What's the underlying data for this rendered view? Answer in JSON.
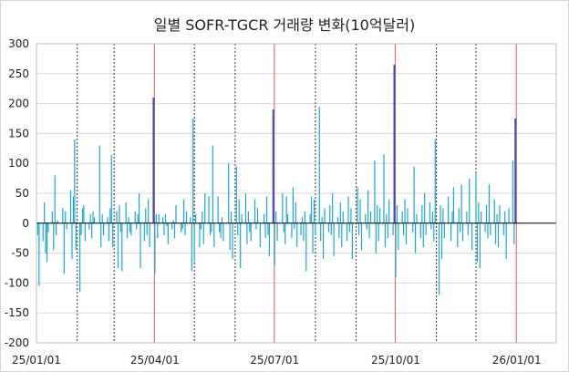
{
  "chart_data": {
    "type": "bar",
    "title": "일별 SOFR-TGCR 거래량 변화(10억달러)",
    "xlabel": "",
    "ylabel": "",
    "ylim": [
      -200,
      300
    ],
    "yticks": [
      300,
      250,
      200,
      150,
      100,
      50,
      0,
      -50,
      -100,
      -150,
      -200
    ],
    "xlim": [
      "2025-01-01",
      "2026-01-31"
    ],
    "xtick_labels": [
      "25/01/01",
      "25/04/01",
      "25/07/01",
      "25/10/01",
      "26/01/01"
    ],
    "xtick_dates": [
      "2025-01-01",
      "2025-04-01",
      "2025-07-01",
      "2025-10-01",
      "2026-01-01"
    ],
    "month_gridlines": [
      "2025-02-01",
      "2025-03-01",
      "2025-05-01",
      "2025-06-01",
      "2025-08-01",
      "2025-09-01",
      "2025-11-01",
      "2025-12-01"
    ],
    "quarter_end_lines": [
      "2025-03-31",
      "2025-06-30",
      "2025-09-30",
      "2025-12-31"
    ],
    "grid": "horizontal",
    "legend": "none",
    "colors": {
      "daily": "#1aa7d6",
      "quarter_end": "#3a4bc0",
      "month_line": "#000000",
      "quarter_line": "#e87070",
      "grid": "#d9d9d9"
    },
    "series": [
      {
        "values": [
          [
            "2025-01-02",
            -20
          ],
          [
            "2025-01-03",
            -105
          ],
          [
            "2025-01-06",
            -30
          ],
          [
            "2025-01-07",
            35
          ],
          [
            "2025-01-08",
            -50
          ],
          [
            "2025-01-09",
            -65
          ],
          [
            "2025-01-10",
            -15
          ],
          [
            "2025-01-13",
            20
          ],
          [
            "2025-01-14",
            -45
          ],
          [
            "2025-01-15",
            80
          ],
          [
            "2025-01-16",
            -20
          ],
          [
            "2025-01-17",
            5
          ],
          [
            "2025-01-21",
            25
          ],
          [
            "2025-01-22",
            -85
          ],
          [
            "2025-01-23",
            20
          ],
          [
            "2025-01-24",
            -10
          ],
          [
            "2025-01-27",
            55
          ],
          [
            "2025-01-28",
            -60
          ],
          [
            "2025-01-29",
            45
          ],
          [
            "2025-01-30",
            140
          ],
          [
            "2025-01-31",
            -45
          ],
          [
            "2025-02-03",
            -115
          ],
          [
            "2025-02-04",
            -20
          ],
          [
            "2025-02-05",
            25
          ],
          [
            "2025-02-06",
            30
          ],
          [
            "2025-02-07",
            -30
          ],
          [
            "2025-02-10",
            -10
          ],
          [
            "2025-02-11",
            15
          ],
          [
            "2025-02-12",
            -25
          ],
          [
            "2025-02-13",
            20
          ],
          [
            "2025-02-14",
            10
          ],
          [
            "2025-02-18",
            130
          ],
          [
            "2025-02-19",
            -40
          ],
          [
            "2025-02-20",
            15
          ],
          [
            "2025-02-21",
            -20
          ],
          [
            "2025-02-24",
            10
          ],
          [
            "2025-02-25",
            -30
          ],
          [
            "2025-02-26",
            25
          ],
          [
            "2025-02-27",
            115
          ],
          [
            "2025-02-28",
            -40
          ],
          [
            "2025-03-03",
            20
          ],
          [
            "2025-03-04",
            -75
          ],
          [
            "2025-03-05",
            30
          ],
          [
            "2025-03-06",
            -15
          ],
          [
            "2025-03-07",
            -80
          ],
          [
            "2025-03-10",
            35
          ],
          [
            "2025-03-11",
            -25
          ],
          [
            "2025-03-12",
            10
          ],
          [
            "2025-03-13",
            -15
          ],
          [
            "2025-03-14",
            -20
          ],
          [
            "2025-03-17",
            20
          ],
          [
            "2025-03-18",
            -10
          ],
          [
            "2025-03-19",
            15
          ],
          [
            "2025-03-20",
            50
          ],
          [
            "2025-03-21",
            -75
          ],
          [
            "2025-03-24",
            -30
          ],
          [
            "2025-03-25",
            25
          ],
          [
            "2025-03-26",
            -20
          ],
          [
            "2025-03-27",
            40
          ],
          [
            "2025-03-28",
            -40
          ],
          [
            "2025-03-31",
            210
          ],
          [
            "2025-04-01",
            -85
          ],
          [
            "2025-04-02",
            15
          ],
          [
            "2025-04-03",
            -25
          ],
          [
            "2025-04-04",
            15
          ],
          [
            "2025-04-07",
            10
          ],
          [
            "2025-04-08",
            -20
          ],
          [
            "2025-04-09",
            15
          ],
          [
            "2025-04-10",
            -5
          ],
          [
            "2025-04-11",
            -35
          ],
          [
            "2025-04-14",
            -10
          ],
          [
            "2025-04-15",
            5
          ],
          [
            "2025-04-16",
            -25
          ],
          [
            "2025-04-17",
            30
          ],
          [
            "2025-04-21",
            -15
          ],
          [
            "2025-04-22",
            -10
          ],
          [
            "2025-04-23",
            40
          ],
          [
            "2025-04-24",
            -20
          ],
          [
            "2025-04-25",
            20
          ],
          [
            "2025-04-28",
            10
          ],
          [
            "2025-04-29",
            -80
          ],
          [
            "2025-04-30",
            175
          ],
          [
            "2025-05-01",
            -65
          ],
          [
            "2025-05-02",
            15
          ],
          [
            "2025-05-05",
            -40
          ],
          [
            "2025-05-06",
            -10
          ],
          [
            "2025-05-07",
            20
          ],
          [
            "2025-05-08",
            -35
          ],
          [
            "2025-05-09",
            50
          ],
          [
            "2025-05-12",
            45
          ],
          [
            "2025-05-13",
            -20
          ],
          [
            "2025-05-14",
            -15
          ],
          [
            "2025-05-15",
            130
          ],
          [
            "2025-05-16",
            -40
          ],
          [
            "2025-05-19",
            45
          ],
          [
            "2025-05-20",
            -15
          ],
          [
            "2025-05-21",
            -25
          ],
          [
            "2025-05-22",
            10
          ],
          [
            "2025-05-23",
            -30
          ],
          [
            "2025-05-27",
            100
          ],
          [
            "2025-05-28",
            -45
          ],
          [
            "2025-05-29",
            20
          ],
          [
            "2025-05-30",
            -60
          ],
          [
            "2025-06-02",
            95
          ],
          [
            "2025-06-03",
            -20
          ],
          [
            "2025-06-04",
            40
          ],
          [
            "2025-06-05",
            -75
          ],
          [
            "2025-06-06",
            15
          ],
          [
            "2025-06-09",
            50
          ],
          [
            "2025-06-10",
            -35
          ],
          [
            "2025-06-11",
            20
          ],
          [
            "2025-06-12",
            -15
          ],
          [
            "2025-06-13",
            -30
          ],
          [
            "2025-06-16",
            40
          ],
          [
            "2025-06-17",
            -10
          ],
          [
            "2025-06-18",
            25
          ],
          [
            "2025-06-20",
            -40
          ],
          [
            "2025-06-23",
            15
          ],
          [
            "2025-06-24",
            -25
          ],
          [
            "2025-06-25",
            45
          ],
          [
            "2025-06-26",
            -20
          ],
          [
            "2025-06-27",
            -55
          ],
          [
            "2025-06-30",
            190
          ],
          [
            "2025-07-01",
            -70
          ],
          [
            "2025-07-02",
            20
          ],
          [
            "2025-07-03",
            -30
          ],
          [
            "2025-07-07",
            50
          ],
          [
            "2025-07-08",
            -15
          ],
          [
            "2025-07-09",
            -35
          ],
          [
            "2025-07-10",
            45
          ],
          [
            "2025-07-11",
            15
          ],
          [
            "2025-07-14",
            -25
          ],
          [
            "2025-07-15",
            60
          ],
          [
            "2025-07-16",
            -10
          ],
          [
            "2025-07-17",
            35
          ],
          [
            "2025-07-18",
            -40
          ],
          [
            "2025-07-21",
            -20
          ],
          [
            "2025-07-22",
            10
          ],
          [
            "2025-07-23",
            -30
          ],
          [
            "2025-07-24",
            20
          ],
          [
            "2025-07-25",
            -80
          ],
          [
            "2025-07-28",
            15
          ],
          [
            "2025-07-29",
            45
          ],
          [
            "2025-07-30",
            -50
          ],
          [
            "2025-07-31",
            40
          ],
          [
            "2025-08-01",
            -20
          ],
          [
            "2025-08-04",
            195
          ],
          [
            "2025-08-05",
            -30
          ],
          [
            "2025-08-06",
            10
          ],
          [
            "2025-08-07",
            -60
          ],
          [
            "2025-08-08",
            25
          ],
          [
            "2025-08-11",
            -15
          ],
          [
            "2025-08-12",
            30
          ],
          [
            "2025-08-13",
            -20
          ],
          [
            "2025-08-14",
            50
          ],
          [
            "2025-08-15",
            -55
          ],
          [
            "2025-08-18",
            10
          ],
          [
            "2025-08-19",
            -25
          ],
          [
            "2025-08-20",
            35
          ],
          [
            "2025-08-21",
            -40
          ],
          [
            "2025-08-22",
            20
          ],
          [
            "2025-08-25",
            -30
          ],
          [
            "2025-08-26",
            45
          ],
          [
            "2025-08-27",
            -15
          ],
          [
            "2025-08-28",
            25
          ],
          [
            "2025-08-29",
            -60
          ],
          [
            "2025-09-02",
            60
          ],
          [
            "2025-09-03",
            -20
          ],
          [
            "2025-09-04",
            40
          ],
          [
            "2025-09-05",
            -45
          ],
          [
            "2025-09-08",
            15
          ],
          [
            "2025-09-09",
            -10
          ],
          [
            "2025-09-10",
            55
          ],
          [
            "2025-09-11",
            -25
          ],
          [
            "2025-09-12",
            20
          ],
          [
            "2025-09-15",
            105
          ],
          [
            "2025-09-16",
            -50
          ],
          [
            "2025-09-17",
            30
          ],
          [
            "2025-09-18",
            -30
          ],
          [
            "2025-09-19",
            25
          ],
          [
            "2025-09-22",
            115
          ],
          [
            "2025-09-23",
            -40
          ],
          [
            "2025-09-24",
            15
          ],
          [
            "2025-09-25",
            -25
          ],
          [
            "2025-09-26",
            40
          ],
          [
            "2025-09-29",
            -20
          ],
          [
            "2025-09-30",
            265
          ],
          [
            "2025-10-01",
            -90
          ],
          [
            "2025-10-02",
            30
          ],
          [
            "2025-10-03",
            -45
          ],
          [
            "2025-10-06",
            20
          ],
          [
            "2025-10-07",
            -20
          ],
          [
            "2025-10-08",
            40
          ],
          [
            "2025-10-09",
            -35
          ],
          [
            "2025-10-10",
            25
          ],
          [
            "2025-10-14",
            -15
          ],
          [
            "2025-10-15",
            95
          ],
          [
            "2025-10-16",
            -50
          ],
          [
            "2025-10-17",
            15
          ],
          [
            "2025-10-20",
            -25
          ],
          [
            "2025-10-21",
            30
          ],
          [
            "2025-10-22",
            -40
          ],
          [
            "2025-10-23",
            50
          ],
          [
            "2025-10-24",
            -20
          ],
          [
            "2025-10-27",
            35
          ],
          [
            "2025-10-28",
            -10
          ],
          [
            "2025-10-29",
            20
          ],
          [
            "2025-10-30",
            -30
          ],
          [
            "2025-10-31",
            140
          ],
          [
            "2025-11-03",
            -120
          ],
          [
            "2025-11-04",
            30
          ],
          [
            "2025-11-05",
            -60
          ],
          [
            "2025-11-06",
            25
          ],
          [
            "2025-11-07",
            -25
          ],
          [
            "2025-11-10",
            45
          ],
          [
            "2025-11-12",
            -30
          ],
          [
            "2025-11-13",
            20
          ],
          [
            "2025-11-14",
            60
          ],
          [
            "2025-11-17",
            -40
          ],
          [
            "2025-11-18",
            25
          ],
          [
            "2025-11-19",
            -15
          ],
          [
            "2025-11-20",
            65
          ],
          [
            "2025-11-21",
            -30
          ],
          [
            "2025-11-24",
            20
          ],
          [
            "2025-11-25",
            -20
          ],
          [
            "2025-11-26",
            75
          ],
          [
            "2025-11-28",
            -45
          ],
          [
            "2025-12-01",
            85
          ],
          [
            "2025-12-02",
            -65
          ],
          [
            "2025-12-03",
            35
          ],
          [
            "2025-12-04",
            -75
          ],
          [
            "2025-12-05",
            20
          ],
          [
            "2025-12-08",
            -15
          ],
          [
            "2025-12-09",
            30
          ],
          [
            "2025-12-10",
            -25
          ],
          [
            "2025-12-11",
            65
          ],
          [
            "2025-12-12",
            -20
          ],
          [
            "2025-12-15",
            40
          ],
          [
            "2025-12-16",
            -35
          ],
          [
            "2025-12-17",
            15
          ],
          [
            "2025-12-18",
            -40
          ],
          [
            "2025-12-19",
            30
          ],
          [
            "2025-12-22",
            -20
          ],
          [
            "2025-12-23",
            20
          ],
          [
            "2025-12-24",
            -60
          ],
          [
            "2025-12-26",
            25
          ],
          [
            "2025-12-29",
            105
          ],
          [
            "2025-12-30",
            -35
          ],
          [
            "2025-12-31",
            175
          ]
        ]
      }
    ]
  }
}
